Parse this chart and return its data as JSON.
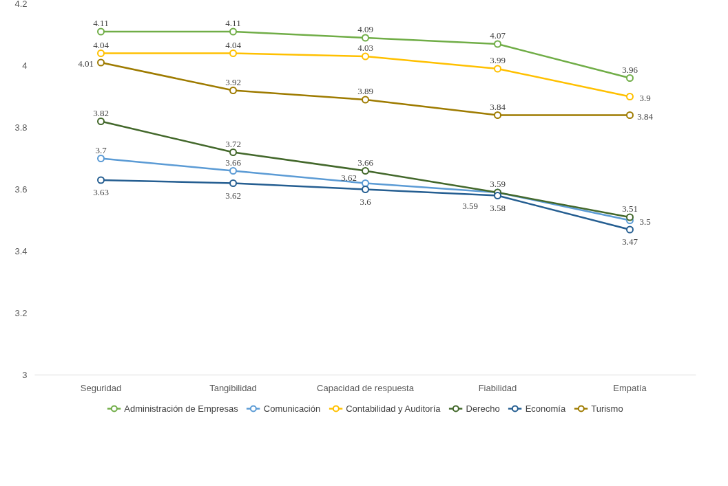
{
  "chart_data": {
    "type": "line",
    "categories": [
      "Seguridad",
      "Tangibilidad",
      "Capacidad de respuesta",
      "Fiabilidad",
      "Empatía"
    ],
    "series": [
      {
        "name": "Administración de Empresas",
        "color": "#70ad47",
        "values": [
          4.11,
          4.11,
          4.09,
          4.07,
          3.96
        ]
      },
      {
        "name": "Comunicación",
        "color": "#5b9bd5",
        "values": [
          3.7,
          3.66,
          3.62,
          3.59,
          3.5
        ]
      },
      {
        "name": "Contabilidad y Auditoría",
        "color": "#ffc000",
        "values": [
          4.04,
          4.04,
          4.03,
          3.99,
          3.9
        ]
      },
      {
        "name": "Derecho",
        "color": "#43682b",
        "values": [
          3.82,
          3.72,
          3.66,
          3.59,
          3.51
        ]
      },
      {
        "name": "Economía",
        "color": "#255e91",
        "values": [
          3.63,
          3.62,
          3.6,
          3.58,
          3.47
        ]
      },
      {
        "name": "Turismo",
        "color": "#9e7b00",
        "values": [
          4.01,
          3.92,
          3.89,
          3.84,
          3.84
        ]
      }
    ],
    "ylim": [
      3,
      4.2
    ],
    "yticks": [
      3,
      3.2,
      3.4,
      3.6,
      3.8,
      4,
      4.2
    ],
    "grid": false,
    "legend": "bottom",
    "marker": "circle",
    "line_style": "solid",
    "data_labels": true
  }
}
